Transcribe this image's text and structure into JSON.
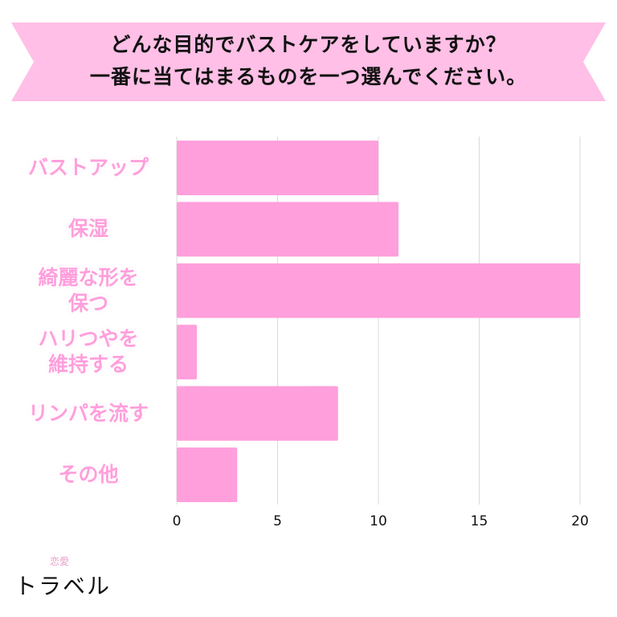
{
  "question": {
    "line1": "どんな目的でバストケアをしていますか？",
    "line2": "一番に当てはまるものを一つ選んでください。"
  },
  "chart_data": {
    "type": "bar",
    "orientation": "horizontal",
    "categories": [
      [
        "バストアップ"
      ],
      [
        "保湿"
      ],
      [
        "綺麗な形を",
        "保つ"
      ],
      [
        "ハリつやを",
        "維持する"
      ],
      [
        "リンパを流す"
      ],
      [
        "その他"
      ]
    ],
    "values": [
      10,
      11,
      20,
      1,
      8,
      3
    ],
    "xlim": [
      0,
      20
    ],
    "xticks": [
      0,
      5,
      10,
      15,
      20
    ],
    "grid": "vertical",
    "bar_color": "#ff9fdc",
    "title": "",
    "xlabel": "",
    "ylabel": ""
  },
  "colors": {
    "banner": "#ffbfe6",
    "label": "#ff9fdc",
    "grid": "#d9d9d9"
  },
  "logo": {
    "small": "恋愛",
    "main": "トラベル"
  }
}
